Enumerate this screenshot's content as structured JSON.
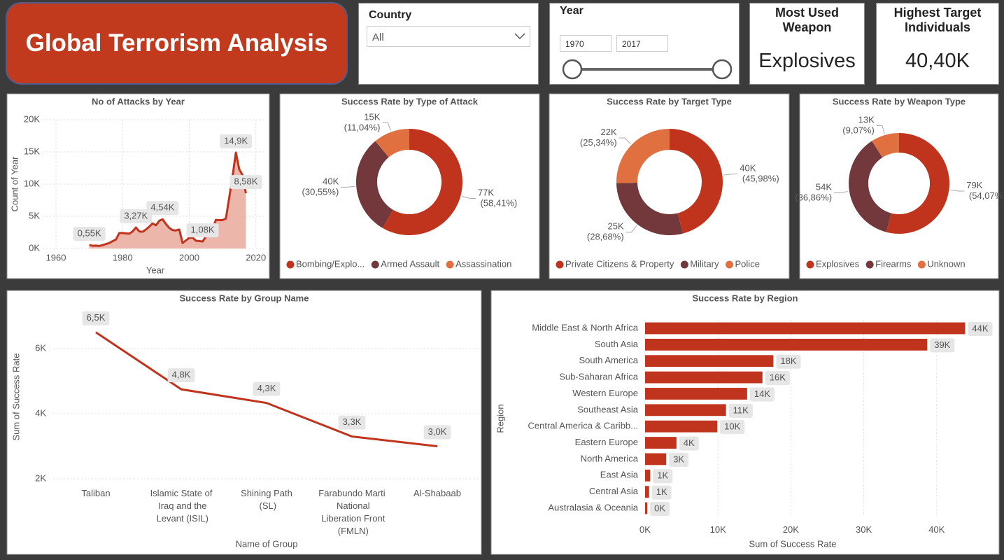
{
  "header": {
    "title": "Global Terrorism Analysis"
  },
  "filters": {
    "country": {
      "label": "Country",
      "value": "All"
    },
    "year": {
      "label": "Year",
      "from": 1970,
      "to": 2017
    }
  },
  "cards": [
    {
      "label": "Most Used Weapon",
      "value": "Explosives"
    },
    {
      "label": "Highest Target Individuals",
      "value": "40,40K"
    }
  ],
  "chart_data": [
    {
      "type": "area",
      "title": "No of Attacks by Year",
      "x_label": "Year",
      "y_label": "Count of Year",
      "color": "#c0341d",
      "fill": "#e9aa9b",
      "grid": true,
      "x": [
        1970,
        1971,
        1972,
        1973,
        1974,
        1975,
        1976,
        1977,
        1978,
        1979,
        1980,
        1981,
        1982,
        1983,
        1984,
        1985,
        1986,
        1987,
        1988,
        1989,
        1990,
        1991,
        1992,
        1993,
        1994,
        1995,
        1996,
        1997,
        1998,
        1999,
        2000,
        2001,
        2002,
        2003,
        2004,
        2005,
        2006,
        2007,
        2008,
        2009,
        2010,
        2011,
        2012,
        2013,
        2014,
        2015,
        2016,
        2017
      ],
      "values": [
        550,
        420,
        450,
        400,
        520,
        700,
        850,
        1150,
        1400,
        2400,
        2400,
        2350,
        2300,
        2650,
        3270,
        2650,
        2600,
        2950,
        3400,
        3900,
        3600,
        4300,
        4540,
        3800,
        3200,
        2850,
        2800,
        2950,
        850,
        1250,
        1650,
        1700,
        1200,
        1150,
        1080,
        1850,
        2550,
        3000,
        4450,
        4400,
        4400,
        4650,
        7900,
        11200,
        14900,
        12300,
        11400,
        8580
      ],
      "value_labels": [
        "0,55K",
        null,
        null,
        null,
        null,
        null,
        null,
        null,
        null,
        null,
        null,
        null,
        null,
        null,
        "3,27K",
        null,
        null,
        null,
        null,
        null,
        null,
        null,
        "4,54K",
        null,
        null,
        null,
        null,
        null,
        null,
        null,
        null,
        null,
        null,
        null,
        "1,08K",
        null,
        null,
        null,
        null,
        null,
        null,
        null,
        null,
        null,
        "14,9K",
        null,
        null,
        "8,58K"
      ],
      "xlim": [
        1956,
        2023
      ],
      "xticks": [
        1960,
        1980,
        2000,
        2020
      ],
      "ylim": [
        0,
        20000
      ],
      "yticks": [
        {
          "value": 0,
          "label": "0K"
        },
        {
          "value": 5000,
          "label": "5K"
        },
        {
          "value": 10000,
          "label": "10K"
        },
        {
          "value": 15000,
          "label": "15K"
        },
        {
          "value": 20000,
          "label": "20K"
        }
      ]
    },
    {
      "type": "donut",
      "title": "Success Rate by Type of Attack",
      "categories": [
        "Bombing/Explo...",
        "Armed Assault",
        "Assassination"
      ],
      "values": [
        77000,
        40270,
        14550
      ],
      "value_labels": [
        "77K (58,41%)",
        "40K (30,55%)",
        "15K (11,04%)"
      ],
      "colors": [
        "#c0341d",
        "#73383c",
        "#e07040"
      ]
    },
    {
      "type": "donut",
      "title": "Success Rate by Target Type",
      "categories": [
        "Private Citizens & Property",
        "Military",
        "Police"
      ],
      "values": [
        40000,
        24950,
        22050
      ],
      "value_labels": [
        "40K (45,98%)",
        "25K (28,68%)",
        "22K (25,34%)"
      ],
      "colors": [
        "#c0341d",
        "#73383c",
        "#e07040"
      ]
    },
    {
      "type": "donut",
      "title": "Success Rate by Weapon Type",
      "categories": [
        "Explosives",
        "Firearms",
        "Unknown"
      ],
      "values": [
        79000,
        53850,
        13250
      ],
      "value_labels": [
        "79K (54,07%)",
        "54K (36,86%)",
        "13K (9,07%)"
      ],
      "colors": [
        "#c0341d",
        "#73383c",
        "#e07040"
      ]
    },
    {
      "type": "line",
      "title": "Success Rate by Group Name",
      "x_label": "Name of Group",
      "y_label": "Sum of Success Rate",
      "color": "#c0341d",
      "grid": true,
      "categories": [
        "Taliban",
        "Islamic State of Iraq and the Levant (ISIL)",
        "Shining Path (SL)",
        "Farabundo Marti National Liberation Front (FMLN)",
        "Al-Shabaab"
      ],
      "values": [
        6500,
        4750,
        4330,
        3300,
        3000
      ],
      "value_labels": [
        "6,5K",
        "4,8K",
        "4,3K",
        "3,3K",
        "3,0K"
      ],
      "ylim": [
        1850,
        7000
      ],
      "yticks": [
        {
          "value": 2000,
          "label": "2K"
        },
        {
          "value": 4000,
          "label": "4K"
        },
        {
          "value": 6000,
          "label": "6K"
        }
      ]
    },
    {
      "type": "bar",
      "orientation": "horizontal",
      "title": "Success Rate by Region",
      "x_label": "Sum of Success Rate",
      "y_label": "Region",
      "color": "#c0341d",
      "grid": true,
      "categories": [
        "Middle East & North Africa",
        "South Asia",
        "South America",
        "Sub-Saharan Africa",
        "Western Europe",
        "Southeast Asia",
        "Central America & Caribb...",
        "Eastern Europe",
        "North America",
        "East Asia",
        "Central Asia",
        "Australasia & Oceania"
      ],
      "values": [
        43900,
        38700,
        17600,
        16100,
        14000,
        11100,
        9900,
        4300,
        2900,
        700,
        550,
        300
      ],
      "value_labels": [
        "44K",
        "39K",
        "18K",
        "16K",
        "14K",
        "11K",
        "10K",
        "4K",
        "3K",
        "1K",
        "1K",
        "0K"
      ],
      "xlim": [
        0,
        47700
      ],
      "xticks": [
        {
          "value": 0,
          "label": "0K"
        },
        {
          "value": 10000,
          "label": "10K"
        },
        {
          "value": 20000,
          "label": "20K"
        },
        {
          "value": 30000,
          "label": "30K"
        },
        {
          "value": 40000,
          "label": "40K"
        }
      ]
    }
  ]
}
